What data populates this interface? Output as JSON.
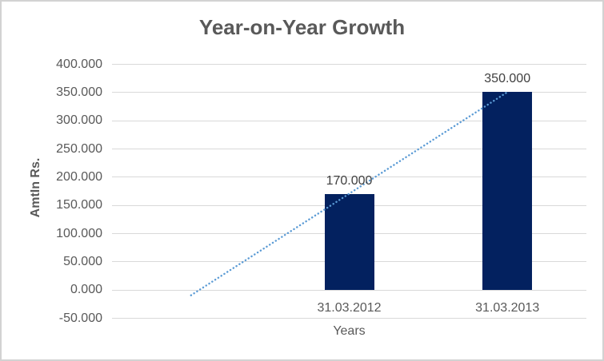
{
  "window": {
    "background_color": "#ffffff",
    "border_color": "#d2d2d2"
  },
  "chart_data": {
    "type": "bar",
    "title": "Year-on-Year Growth",
    "xlabel": "Years",
    "ylabel": "AmtIn Rs.",
    "categories": [
      "",
      "31.03.2012",
      "31.03.2013"
    ],
    "values": [
      null,
      170000,
      350000
    ],
    "data_labels": [
      null,
      "170.000",
      "350.000"
    ],
    "y_axis": {
      "min": -50000,
      "max": 400000,
      "tick_values": [
        400000,
        350000,
        300000,
        250000,
        200000,
        150000,
        100000,
        50000,
        0,
        -50000
      ],
      "tick_labels": [
        "400.000",
        "350.000",
        "300.000",
        "250.000",
        "200.000",
        "150.000",
        "100.000",
        "50.000",
        "0.000",
        "-50.000"
      ]
    },
    "grid": true,
    "legend": "none",
    "trendline": {
      "style": "dotted",
      "points": [
        {
          "category_index": 0,
          "value": -10000
        },
        {
          "category_index": 2,
          "value": 350000
        }
      ]
    },
    "colors": {
      "bar": "#03215f",
      "trendline": "#5b9bd5",
      "gridline": "#d9d9d9",
      "title_text": "#595959",
      "axis_text": "#595959",
      "data_label_text": "#404040"
    }
  }
}
